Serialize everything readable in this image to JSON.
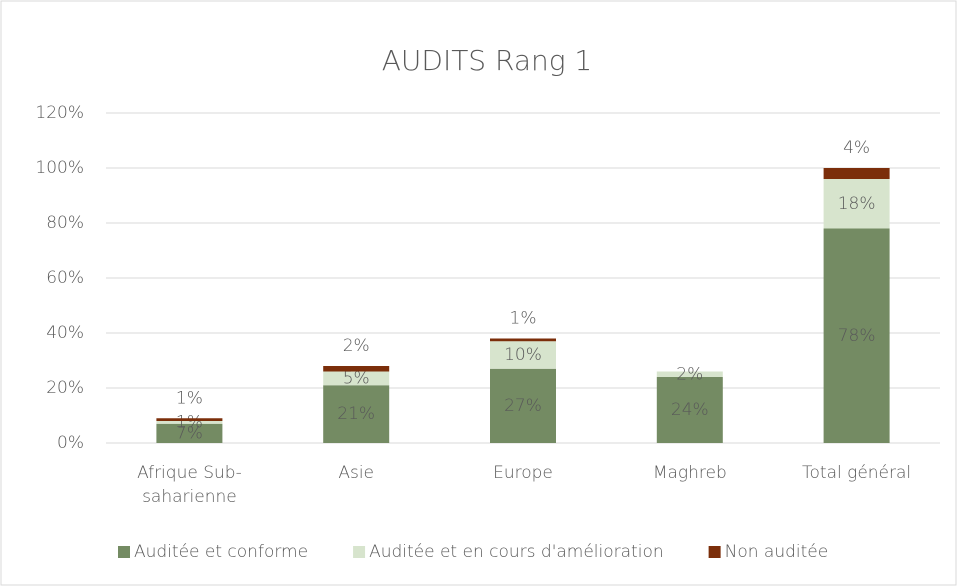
{
  "chart_data": {
    "type": "stacked_bar",
    "title": "AUDITS Rang 1",
    "categories": [
      "Afrique Sub-saharienne",
      "Asie",
      "Europe",
      "Maghreb",
      "Total général"
    ],
    "series": [
      {
        "name": "Auditée et conforme",
        "color": "#748b63",
        "values": [
          7,
          21,
          27,
          24,
          78
        ],
        "value_labels": [
          "7%",
          "21%",
          "27%",
          "24%",
          "78%"
        ]
      },
      {
        "name": "Auditée et en cours d'amélioration",
        "color": "#d7e4cd",
        "values": [
          1,
          5,
          10,
          2,
          18
        ],
        "value_labels": [
          "1%",
          "5%",
          "10%",
          "2%",
          "18%"
        ]
      },
      {
        "name": "Non auditée",
        "color": "#7b2e0a",
        "values": [
          1,
          2,
          1,
          null,
          4
        ],
        "value_labels": [
          "1%",
          "2%",
          "1%",
          null,
          "4%"
        ]
      }
    ],
    "ylim": [
      0,
      120
    ],
    "yticks": [
      {
        "value": 0,
        "label": "0%"
      },
      {
        "value": 20,
        "label": "20%"
      },
      {
        "value": 40,
        "label": "40%"
      },
      {
        "value": 60,
        "label": "60%"
      },
      {
        "value": 80,
        "label": "80%"
      },
      {
        "value": 100,
        "label": "100%"
      },
      {
        "value": 120,
        "label": "120%"
      }
    ],
    "grid": true,
    "legend": "bottom"
  }
}
